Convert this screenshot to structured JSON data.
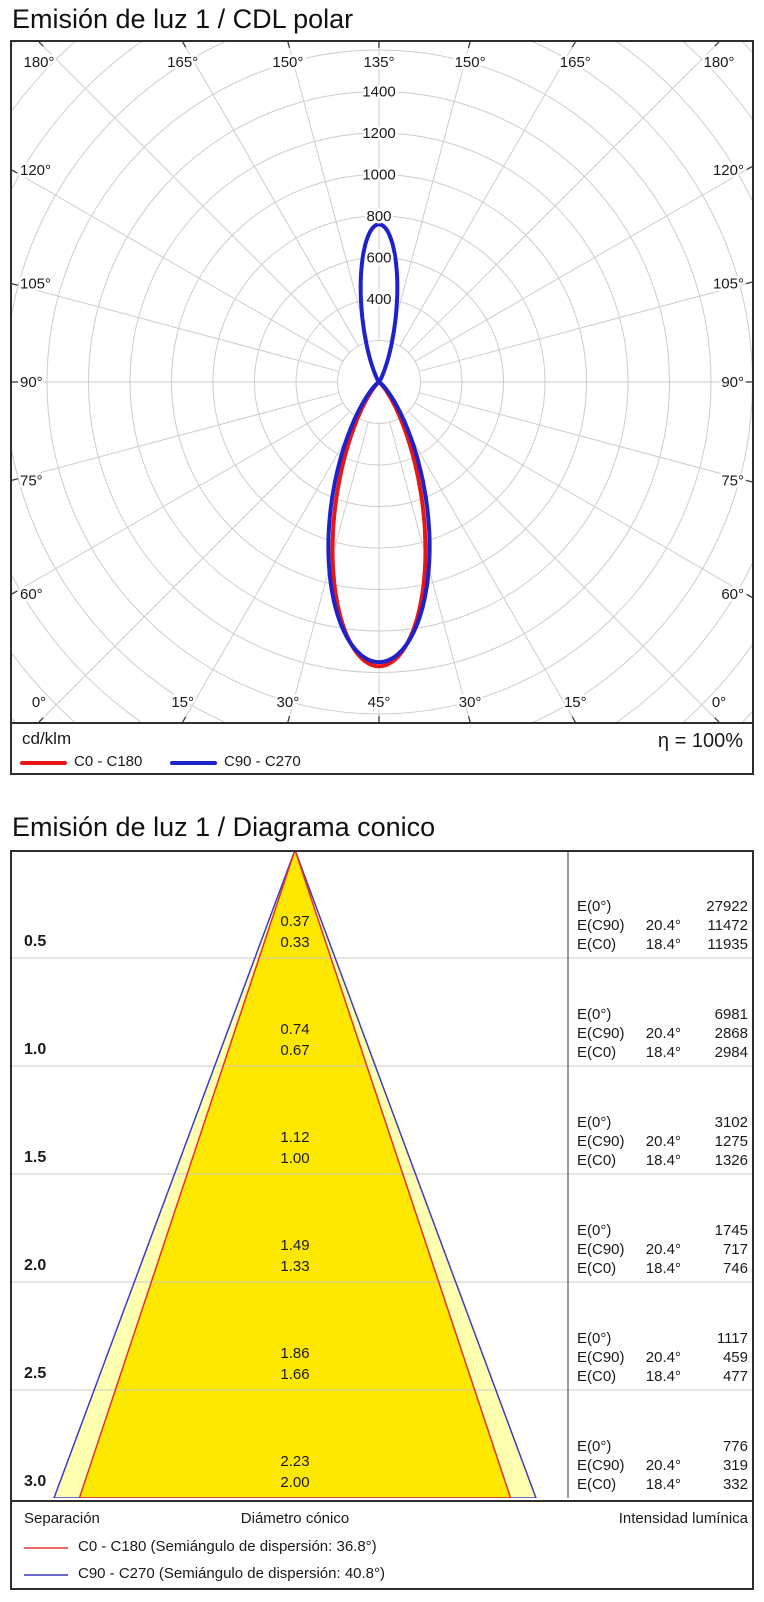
{
  "polar_section": {
    "title": "Emisión de luz 1 / CDL polar",
    "unit_label": "cd/klm",
    "efficiency_label": "η = 100%",
    "legend": [
      {
        "label": "C0 - C180",
        "color": "#e81717"
      },
      {
        "label": "C90 - C270",
        "color": "#1f21c9"
      }
    ],
    "chart_data": {
      "type": "polar_intensity_curve",
      "radial_unit": "cd/klm",
      "ring_step": 200,
      "ring_labels": [
        400,
        600,
        800,
        1000,
        1200,
        1400
      ],
      "angle_step_deg": 15,
      "angle_labels_top": [
        "135°",
        "150°",
        "165°",
        "180°",
        "165°",
        "150°",
        "135°"
      ],
      "angle_labels_bottom": [
        "45°",
        "30°",
        "15°",
        "0°",
        "15°",
        "30°",
        "45°"
      ],
      "angle_labels_left": [
        "120°",
        "105°",
        "90°",
        "75°",
        "60°"
      ],
      "angle_labels_right": [
        "120°",
        "105°",
        "90°",
        "75°",
        "60°"
      ],
      "series": [
        {
          "name": "C0 - C180",
          "color": "#e81717",
          "lower_peak": 1370,
          "lower_half_angle": 18.4,
          "upper_peak": 0,
          "upper_half_angle": 12
        },
        {
          "name": "C90 - C270",
          "color": "#1f21c9",
          "lower_peak": 1350,
          "lower_half_angle": 20.4,
          "upper_peak": 760,
          "upper_half_angle": 13
        }
      ],
      "grid_color": "#cdcdcd",
      "tick_color": "#3a3a3a"
    }
  },
  "cone_section": {
    "title": "Emisión de luz 1 / Diagrama conico",
    "footer": {
      "left": "Separación",
      "center": "Diámetro cónico",
      "right": "Intensidad lumínica"
    },
    "legend": [
      {
        "label": "C0 - C180 (Semiángulo de dispersión: 36.8°)",
        "color": "#ef6a6a"
      },
      {
        "label": "C90 - C270 (Semiángulo de dispersión: 40.8°)",
        "color": "#6a6ace"
      }
    ],
    "chart_data": {
      "type": "cone_diagram",
      "beam": {
        "c0_half_angle_deg": 18.4,
        "c90_half_angle_deg": 20.4,
        "c0_line_color": "#e83030",
        "c90_line_color": "#3c3cc8",
        "inner_fill": "#ffe800",
        "band_fill": "#ffffb0"
      },
      "e_labels": {
        "e0": "E(0°)",
        "ec90": "E(C90)",
        "ec0": "E(C0)",
        "ang_c90": "20.4°",
        "ang_c0": "18.4°"
      },
      "rows": [
        {
          "separation": "0.5",
          "diameter_c90": "0.37",
          "diameter_c0": "0.33",
          "e0": "27922",
          "ec90": "11472",
          "ec0": "11935"
        },
        {
          "separation": "1.0",
          "diameter_c90": "0.74",
          "diameter_c0": "0.67",
          "e0": "6981",
          "ec90": "2868",
          "ec0": "2984"
        },
        {
          "separation": "1.5",
          "diameter_c90": "1.12",
          "diameter_c0": "1.00",
          "e0": "3102",
          "ec90": "1275",
          "ec0": "1326"
        },
        {
          "separation": "2.0",
          "diameter_c90": "1.49",
          "diameter_c0": "1.33",
          "e0": "1745",
          "ec90": "717",
          "ec0": "746"
        },
        {
          "separation": "2.5",
          "diameter_c90": "1.86",
          "diameter_c0": "1.66",
          "e0": "1117",
          "ec90": "459",
          "ec0": "477"
        },
        {
          "separation": "3.0",
          "diameter_c90": "2.23",
          "diameter_c0": "2.00",
          "e0": "776",
          "ec90": "319",
          "ec0": "332"
        }
      ],
      "row_line_color": "#c8c8c8",
      "divider_color": "#555555"
    }
  }
}
